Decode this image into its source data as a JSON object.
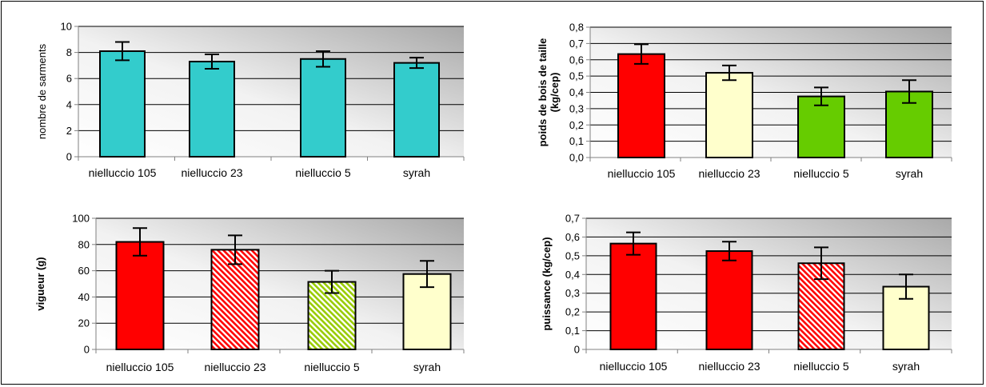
{
  "chart_data": [
    {
      "type": "bar",
      "title": "",
      "xlabel": "",
      "ylabel": "nombre de sarments",
      "ylabel_bold": false,
      "categories": [
        "nielluccio 105",
        "nielluccio 23",
        "nielluccio 5",
        "syrah"
      ],
      "values": [
        8.1,
        7.3,
        7.5,
        7.2
      ],
      "errors": [
        0.7,
        0.55,
        0.6,
        0.4
      ],
      "ylim": [
        0,
        10
      ],
      "yticks": [
        0,
        2,
        4,
        6,
        8,
        10
      ],
      "tick_labels": [
        "0",
        "2",
        "4",
        "6",
        "8",
        "10"
      ],
      "grid": true,
      "bar_colors": [
        "#33cccc",
        "#33cccc",
        "#33cccc",
        "#33cccc"
      ],
      "bar_patterns": [
        "solid",
        "solid",
        "solid",
        "solid"
      ]
    },
    {
      "type": "bar",
      "title": "",
      "xlabel": "",
      "ylabel": "poids de bois de taille (kg/cep)",
      "ylabel_lines": [
        "poids de bois de taille",
        "(kg/cep)"
      ],
      "ylabel_bold": true,
      "categories": [
        "nielluccio 105",
        "nielluccio 23",
        "nielluccio 5",
        "syrah"
      ],
      "values": [
        0.635,
        0.52,
        0.375,
        0.405
      ],
      "errors": [
        0.06,
        0.045,
        0.055,
        0.07
      ],
      "ylim": [
        0,
        0.8
      ],
      "yticks": [
        0,
        0.1,
        0.2,
        0.3,
        0.4,
        0.5,
        0.6,
        0.7,
        0.8
      ],
      "tick_labels": [
        "0,0",
        "0,1",
        "0,2",
        "0,3",
        "0,4",
        "0,5",
        "0,6",
        "0,7",
        "0,8"
      ],
      "grid": true,
      "bar_colors": [
        "#ff0000",
        "#ffffcc",
        "#66cc00",
        "#66cc00"
      ],
      "bar_patterns": [
        "solid",
        "solid",
        "solid",
        "solid"
      ]
    },
    {
      "type": "bar",
      "title": "",
      "xlabel": "",
      "ylabel": "vigueur (g)",
      "ylabel_bold": true,
      "categories": [
        "nielluccio 105",
        "nielluccio 23",
        "nielluccio 5",
        "syrah"
      ],
      "values": [
        82,
        76,
        51.5,
        57.5
      ],
      "errors": [
        10.5,
        11,
        8.5,
        10
      ],
      "ylim": [
        0,
        100
      ],
      "yticks": [
        0,
        20,
        40,
        60,
        80,
        100
      ],
      "tick_labels": [
        "0",
        "20",
        "40",
        "60",
        "80",
        "100"
      ],
      "grid": true,
      "bar_colors": [
        "#ff0000",
        "#ff0000",
        "#99cc00",
        "#ffffcc"
      ],
      "bar_patterns": [
        "solid",
        "hatch",
        "hatch",
        "solid"
      ]
    },
    {
      "type": "bar",
      "title": "",
      "xlabel": "",
      "ylabel": "puissance (kg/cep)",
      "ylabel_bold": true,
      "categories": [
        "nielluccio 105",
        "nielluccio 23",
        "nielluccio 5",
        "syrah"
      ],
      "values": [
        0.565,
        0.525,
        0.46,
        0.335
      ],
      "errors": [
        0.06,
        0.05,
        0.085,
        0.065
      ],
      "ylim": [
        0,
        0.7
      ],
      "yticks": [
        0,
        0.1,
        0.2,
        0.3,
        0.4,
        0.5,
        0.6,
        0.7
      ],
      "tick_labels": [
        "0",
        "0,1",
        "0,2",
        "0,3",
        "0,4",
        "0,5",
        "0,6",
        "0,7"
      ],
      "grid": true,
      "bar_colors": [
        "#ff0000",
        "#ff0000",
        "#ff0000",
        "#ffffcc"
      ],
      "bar_patterns": [
        "solid",
        "solid",
        "hatch",
        "solid"
      ]
    }
  ]
}
